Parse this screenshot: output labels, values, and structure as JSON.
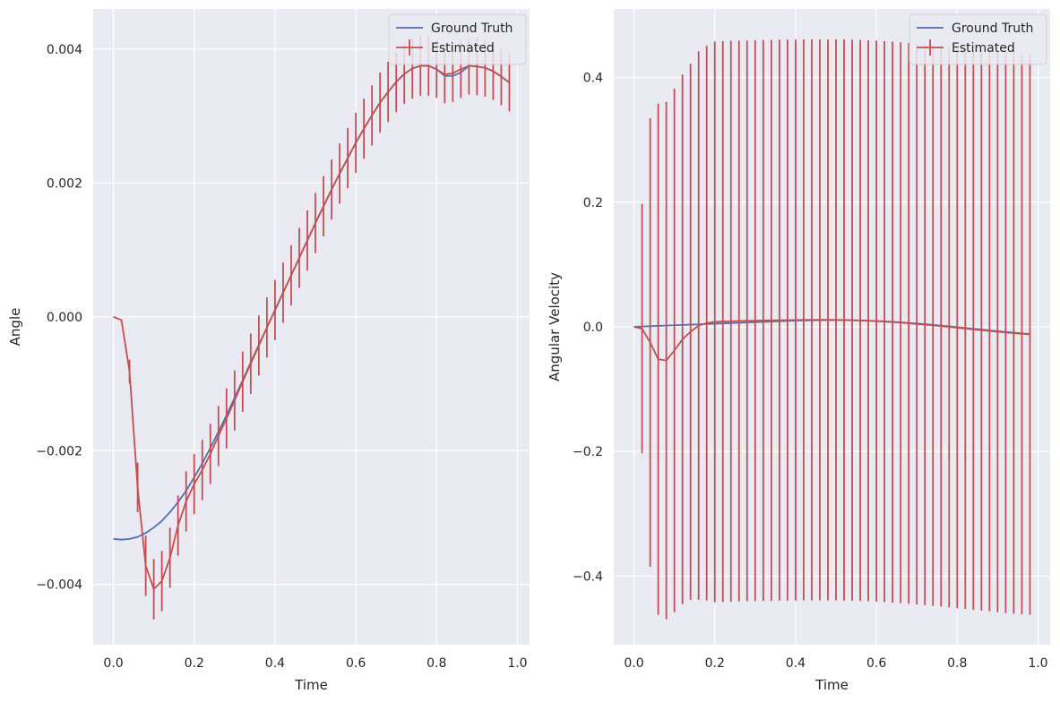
{
  "colors": {
    "ground_truth": "#4c72b0",
    "estimated": "#c44e52",
    "plot_bg": "#eaeaf2",
    "grid": "#ffffff"
  },
  "chart_data": [
    {
      "type": "line",
      "xlabel": "Time",
      "ylabel": "Angle",
      "xlim": [
        -0.05,
        1.03
      ],
      "ylim": [
        -0.0049,
        0.0046
      ],
      "xticks": [
        0.0,
        0.2,
        0.4,
        0.6,
        0.8,
        1.0
      ],
      "xtick_labels": [
        "0.0",
        "0.2",
        "0.4",
        "0.6",
        "0.8",
        "1.0"
      ],
      "yticks": [
        -0.004,
        -0.002,
        0.0,
        0.002,
        0.004
      ],
      "ytick_labels": [
        "−0.004",
        "−0.002",
        "0.000",
        "0.002",
        "0.004"
      ],
      "grid": true,
      "legend": "top-right",
      "series": [
        {
          "name": "Ground Truth",
          "x": [
            0.0,
            0.02,
            0.04,
            0.06,
            0.08,
            0.1,
            0.12,
            0.14,
            0.16,
            0.18,
            0.2,
            0.22,
            0.24,
            0.26,
            0.28,
            0.3,
            0.32,
            0.34,
            0.36,
            0.38,
            0.4,
            0.42,
            0.44,
            0.46,
            0.48,
            0.5,
            0.52,
            0.54,
            0.56,
            0.58,
            0.6,
            0.62,
            0.64,
            0.66,
            0.68,
            0.7,
            0.72,
            0.74,
            0.76,
            0.78,
            0.8,
            0.82,
            0.84,
            0.86,
            0.88,
            0.9,
            0.92,
            0.94,
            0.96,
            0.98
          ],
          "y": [
            -0.00332,
            -0.00333,
            -0.00332,
            -0.00329,
            -0.00323,
            -0.00315,
            -0.00305,
            -0.00292,
            -0.00277,
            -0.0026,
            -0.0024,
            -0.00219,
            -0.00196,
            -0.00172,
            -0.00147,
            -0.00121,
            -0.00095,
            -0.00068,
            -0.00042,
            -0.00016,
            0.0001,
            0.00036,
            0.00062,
            0.00088,
            0.00114,
            0.0014,
            0.00165,
            0.0019,
            0.00214,
            0.00237,
            0.0026,
            0.00281,
            0.00301,
            0.0032,
            0.00336,
            0.00351,
            0.00363,
            0.00371,
            0.00375,
            0.00375,
            0.0037,
            0.0036,
            0.0036,
            0.00365,
            0.00375,
            0.00374,
            0.00372,
            0.00367,
            0.00359,
            0.0035
          ]
        },
        {
          "name": "Estimated",
          "x": [
            0.0,
            0.02,
            0.04,
            0.06,
            0.08,
            0.1,
            0.12,
            0.14,
            0.16,
            0.18,
            0.2,
            0.22,
            0.24,
            0.26,
            0.28,
            0.3,
            0.32,
            0.34,
            0.36,
            0.38,
            0.4,
            0.42,
            0.44,
            0.46,
            0.48,
            0.5,
            0.52,
            0.54,
            0.56,
            0.58,
            0.6,
            0.62,
            0.64,
            0.66,
            0.68,
            0.7,
            0.72,
            0.74,
            0.76,
            0.78,
            0.8,
            0.82,
            0.84,
            0.86,
            0.88,
            0.9,
            0.92,
            0.94,
            0.96,
            0.98
          ],
          "y": [
            0.0,
            -5e-05,
            -0.00082,
            -0.00255,
            -0.00372,
            -0.00407,
            -0.00395,
            -0.0036,
            -0.00312,
            -0.00276,
            -0.0025,
            -0.00229,
            -0.00205,
            -0.00178,
            -0.00152,
            -0.00125,
            -0.00097,
            -0.0007,
            -0.00043,
            -0.00016,
            0.0001,
            0.00036,
            0.00062,
            0.00088,
            0.00114,
            0.0014,
            0.00165,
            0.0019,
            0.00214,
            0.00237,
            0.0026,
            0.00281,
            0.00301,
            0.0032,
            0.00336,
            0.00351,
            0.00363,
            0.00371,
            0.00375,
            0.00375,
            0.0037,
            0.00362,
            0.00364,
            0.0037,
            0.00375,
            0.00374,
            0.00372,
            0.00367,
            0.00359,
            0.0035
          ],
          "yerr": [
            0.0,
            0.0,
            0.00018,
            0.00037,
            0.00045,
            0.00045,
            0.00045,
            0.00045,
            0.00045,
            0.00045,
            0.00045,
            0.00045,
            0.00045,
            0.00045,
            0.00045,
            0.00045,
            0.00045,
            0.00045,
            0.00045,
            0.00045,
            0.00045,
            0.00045,
            0.00045,
            0.00045,
            0.00045,
            0.00045,
            0.00045,
            0.00045,
            0.00045,
            0.00045,
            0.00045,
            0.00045,
            0.00045,
            0.00045,
            0.00045,
            0.00045,
            0.00045,
            0.00045,
            0.00045,
            0.00045,
            0.00043,
            0.00043,
            0.00043,
            0.00043,
            0.00043,
            0.00043,
            0.00043,
            0.00043,
            0.00043,
            0.00043
          ]
        }
      ]
    },
    {
      "type": "line",
      "xlabel": "Time",
      "ylabel": "Angular Velocity",
      "xlim": [
        -0.05,
        1.03
      ],
      "ylim": [
        -0.51,
        0.51
      ],
      "xticks": [
        0.0,
        0.2,
        0.4,
        0.6,
        0.8,
        1.0
      ],
      "xtick_labels": [
        "0.0",
        "0.2",
        "0.4",
        "0.6",
        "0.8",
        "1.0"
      ],
      "yticks": [
        -0.4,
        -0.2,
        0.0,
        0.2,
        0.4
      ],
      "ytick_labels": [
        "−0.4",
        "−0.2",
        "0.0",
        "0.2",
        "0.4"
      ],
      "grid": true,
      "legend": "top-right",
      "series": [
        {
          "name": "Ground Truth",
          "x": [
            0.0,
            0.02,
            0.04,
            0.06,
            0.08,
            0.1,
            0.12,
            0.14,
            0.16,
            0.18,
            0.2,
            0.22,
            0.24,
            0.26,
            0.28,
            0.3,
            0.32,
            0.34,
            0.36,
            0.38,
            0.4,
            0.42,
            0.44,
            0.46,
            0.48,
            0.5,
            0.52,
            0.54,
            0.56,
            0.58,
            0.6,
            0.62,
            0.64,
            0.66,
            0.68,
            0.7,
            0.72,
            0.74,
            0.76,
            0.78,
            0.8,
            0.82,
            0.84,
            0.86,
            0.88,
            0.9,
            0.92,
            0.94,
            0.96,
            0.98
          ],
          "y": [
            0.0,
            0.0005,
            0.001,
            0.0015,
            0.002,
            0.0025,
            0.003,
            0.0035,
            0.004,
            0.0045,
            0.005,
            0.0055,
            0.006,
            0.0065,
            0.007,
            0.0075,
            0.008,
            0.0085,
            0.009,
            0.0095,
            0.01,
            0.0103,
            0.0105,
            0.0107,
            0.0108,
            0.0108,
            0.0107,
            0.0105,
            0.0102,
            0.0098,
            0.0093,
            0.0087,
            0.008,
            0.0072,
            0.0063,
            0.0053,
            0.0043,
            0.0032,
            0.002,
            0.0008,
            -0.0005,
            -0.0018,
            -0.0031,
            -0.0044,
            -0.0057,
            -0.007,
            -0.0082,
            -0.0094,
            -0.0105,
            -0.0115
          ]
        },
        {
          "name": "Estimated",
          "x": [
            0.0,
            0.02,
            0.04,
            0.06,
            0.08,
            0.1,
            0.12,
            0.14,
            0.16,
            0.18,
            0.2,
            0.22,
            0.24,
            0.26,
            0.28,
            0.3,
            0.32,
            0.34,
            0.36,
            0.38,
            0.4,
            0.42,
            0.44,
            0.46,
            0.48,
            0.5,
            0.52,
            0.54,
            0.56,
            0.58,
            0.6,
            0.62,
            0.64,
            0.66,
            0.68,
            0.7,
            0.72,
            0.74,
            0.76,
            0.78,
            0.8,
            0.82,
            0.84,
            0.86,
            0.88,
            0.9,
            0.92,
            0.94,
            0.96,
            0.98
          ],
          "y": [
            0.0,
            -0.003,
            -0.025,
            -0.052,
            -0.054,
            -0.038,
            -0.02,
            -0.008,
            0.002,
            0.006,
            0.008,
            0.0085,
            0.009,
            0.0093,
            0.0096,
            0.0099,
            0.0102,
            0.0104,
            0.0106,
            0.0108,
            0.011,
            0.0111,
            0.0112,
            0.0112,
            0.0112,
            0.0111,
            0.0109,
            0.0106,
            0.0102,
            0.0097,
            0.0091,
            0.0084,
            0.0076,
            0.0067,
            0.0057,
            0.0046,
            0.0035,
            0.0023,
            0.0011,
            -0.0002,
            -0.0015,
            -0.0028,
            -0.0041,
            -0.0054,
            -0.0067,
            -0.0079,
            -0.0091,
            -0.0102,
            -0.0112,
            -0.0121
          ],
          "yerr": [
            0.0,
            0.2,
            0.36,
            0.41,
            0.415,
            0.42,
            0.425,
            0.43,
            0.44,
            0.445,
            0.45,
            0.45,
            0.45,
            0.45,
            0.45,
            0.45,
            0.45,
            0.45,
            0.45,
            0.45,
            0.45,
            0.45,
            0.45,
            0.45,
            0.45,
            0.45,
            0.45,
            0.45,
            0.45,
            0.45,
            0.45,
            0.45,
            0.45,
            0.45,
            0.45,
            0.45,
            0.45,
            0.45,
            0.45,
            0.45,
            0.45,
            0.45,
            0.45,
            0.45,
            0.45,
            0.45,
            0.45,
            0.45,
            0.45,
            0.45
          ]
        }
      ]
    }
  ]
}
